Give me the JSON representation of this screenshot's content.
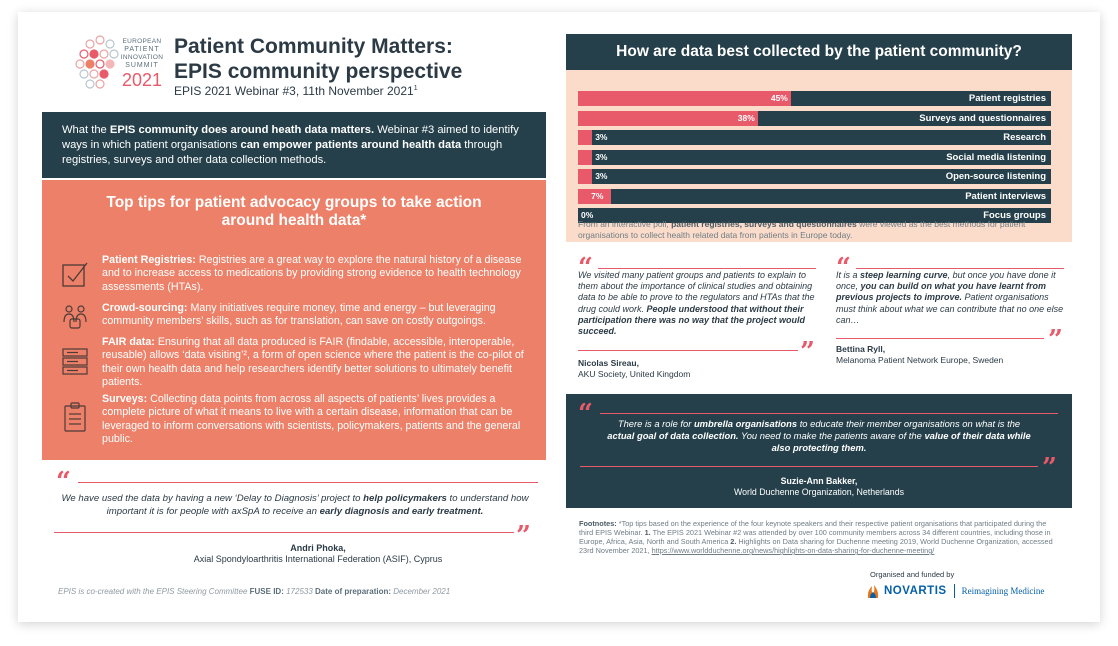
{
  "header": {
    "logo_line1": "EUROPEAN",
    "logo_line2": "PATIENT",
    "logo_line3": "INNOVATION",
    "logo_line4": "SUMMIT",
    "logo_year": "2021",
    "title_line1": "Patient Community Matters:",
    "title_line2": "EPIS community perspective",
    "subtitle": "EPIS 2021 Webinar #3, 11th November 2021",
    "subtitle_sup": "1"
  },
  "intro": {
    "p1": "What the ",
    "b1": "EPIS community does around heath data matters.",
    "p2": " Webinar #3 aimed to identify ways in which patient organisations ",
    "b2": "can empower patients around health data",
    "p3": " through registries, surveys and other data collection methods."
  },
  "tips": {
    "title_line1": "Top tips for patient advocacy groups to take action",
    "title_line2": "around health data*",
    "items": [
      {
        "heading": "Patient Registries:",
        "text": " Registries are a great way to explore the natural history of a disease and to increase access to medications by providing strong evidence to health technology assessments (HTAs)."
      },
      {
        "heading": "Crowd-sourcing:",
        "text": " Many initiatives require money, time and energy – but leveraging community members’ skills, such as for translation, can save on costly outgoings."
      },
      {
        "heading": "FAIR data:",
        "text": " Ensuring that all data produced is FAIR (findable, accessible, interoperable, reusable) allows ‘data visiting’², a form of open science where the patient is the co-pilot of their own health data and help researchers identify better solutions to ultimately benefit patients."
      },
      {
        "heading": "Surveys:",
        "text": " Collecting data points from across all aspects of patients’ lives provides a complete picture of what it means to live with a certain disease, information that can be leveraged to inform conversations with scientists, policymakers, patients and the general public."
      }
    ]
  },
  "quote_left": {
    "p1": "We have used the data by having a new ‘Delay to Diagnosis’ project to ",
    "b1": "help policymakers",
    "p2": " to understand how important it is for people with axSpA to receive an ",
    "b2": "early diagnosis and early treatment.",
    "author": "Andri Phoka,",
    "org": "Axial Spondyloarthritis International Federation (ASIF), Cyprus"
  },
  "footer_left": {
    "p1": "EPIS is co-created with the EPIS Steering Committee ",
    "b1": "FUSE ID:",
    "p2": " 172533 ",
    "b2": "Date of preparation:",
    "p3": " December 2021"
  },
  "poll": {
    "title": "How are data best collected by the patient community?",
    "note_p1": "From an interactive poll, ",
    "note_b1": "patient registries, surveys and questionnaires",
    "note_p2": " were viewed as the best methods for patient organisations to collect health related data from patients in Europe today."
  },
  "chart_data": {
    "type": "bar",
    "orientation": "horizontal",
    "title": "How are data best collected by the patient community?",
    "categories": [
      "Patient registries",
      "Surveys and questionnaires",
      "Research",
      "Social media listening",
      "Open-source listening",
      "Patient interviews",
      "Focus groups"
    ],
    "values": [
      45,
      38,
      3,
      3,
      3,
      7,
      0
    ],
    "value_labels": [
      "45%",
      "38%",
      "3%",
      "3%",
      "3%",
      "7%",
      "0%"
    ],
    "xlim": [
      0,
      100
    ],
    "grid": false,
    "bar_color": "#e85a6a",
    "track_color": "#25404b"
  },
  "quote_mid_left": {
    "p1": "We visited many patient groups and patients to explain to them about the importance of clinical studies and obtaining data to be able to prove to the regulators and HTAs that the drug could work. ",
    "b1": "People understood that without their participation there was no way that the project would succeed.",
    "author": "Nicolas Sireau,",
    "org": "AKU Society, United Kingdom"
  },
  "quote_mid_right": {
    "p1": "It is a ",
    "b1": "steep learning curve",
    "p2": ", but once you have done it once, ",
    "b2": "you can build on what you have learnt from previous projects to improve.",
    "p3": " Patient organisations must think about what we can contribute that no one else can…",
    "author": "Bettina Ryll,",
    "org": "Melanoma Patient Network Europe, Sweden"
  },
  "quote_dark": {
    "p1": "There is a role for ",
    "b1": "umbrella organisations",
    "p2": " to educate their member organisations on what is the ",
    "b2": "actual goal of data collection.",
    "p3": " You need to make the patients aware of the ",
    "b3": "value of their data while also protecting them.",
    "author": "Suzie-Ann Bakker,",
    "org": "World Duchenne Organization, Netherlands"
  },
  "footnotes": {
    "label": "Footnotes:",
    "p1": " *Top tips based on the experience of the four keynote speakers and their respective patient organisations that participated during the third EPIS Webinar. ",
    "n1": "1.",
    "p2": " The EPIS 2021 Webinar #2 was attended by over 100 community members across 34 different countries, including those in Europe, Africa, Asia, North and South America ",
    "n2": "2.",
    "p3": " Highlights on Data sharing for Duchenne meeting 2019, World Duchenne Organization, accessed 23rd November 2021, ",
    "link": "https://www.worldduchenne.org/news/highlights-on-data-sharing-for-duchenne-meeting/"
  },
  "sponsor": {
    "organised": "Organised and funded by",
    "name": "NOVARTIS",
    "tagline": "Reimagining Medicine"
  },
  "quote_marks": {
    "open": "“",
    "close": "”"
  },
  "colors": {
    "navy": "#25404b",
    "salmon": "#ec8068",
    "pink": "#e85a6a",
    "peach": "#fbdcca",
    "novartis_blue": "#0460a9"
  }
}
